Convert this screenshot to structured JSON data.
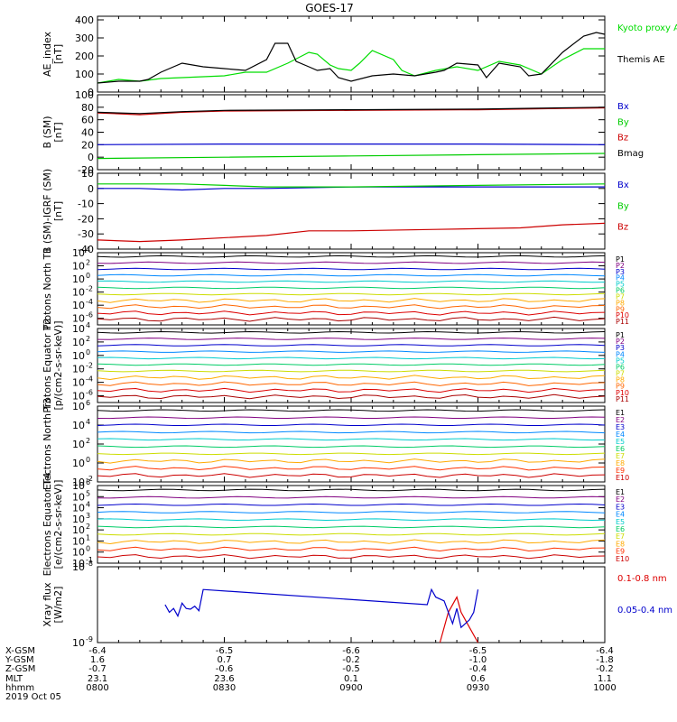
{
  "title": "GOES-17",
  "footer": {
    "row_labels": [
      "X-GSM",
      "Y-GSM",
      "Z-GSM",
      "MLT",
      "hhmm",
      "2019 Oct 05"
    ],
    "columns": [
      {
        "values": [
          "-6.4",
          "1.6",
          "-0.7",
          "23.1",
          "0800"
        ]
      },
      {
        "values": [
          "-6.5",
          "0.7",
          "-0.6",
          "23.6",
          "0830"
        ]
      },
      {
        "values": [
          "-6.6",
          "-0.2",
          "-0.5",
          "0.1",
          "0900"
        ]
      },
      {
        "values": [
          "-6.5",
          "-1.0",
          "-0.4",
          "0.6",
          "0930"
        ]
      },
      {
        "values": [
          "-6.4",
          "-1.8",
          "-0.2",
          "1.1",
          "1000"
        ]
      }
    ]
  },
  "chart_data": [
    {
      "type": "line",
      "ylabel": "AE_index [nT]",
      "ylim": [
        0,
        420
      ],
      "yticks": [
        "0",
        "100",
        "200",
        "300",
        "400"
      ],
      "xlim": [
        0,
        120
      ],
      "series": [
        {
          "name": "Kyoto proxy AE",
          "color": "#00dd00",
          "x": [
            0,
            5,
            10,
            15,
            20,
            25,
            30,
            35,
            40,
            45,
            50,
            52,
            55,
            57,
            60,
            62,
            65,
            70,
            72,
            75,
            80,
            85,
            90,
            95,
            100,
            105,
            110,
            115,
            120
          ],
          "y": [
            50,
            70,
            60,
            75,
            80,
            85,
            90,
            110,
            110,
            160,
            220,
            210,
            150,
            130,
            120,
            160,
            230,
            180,
            120,
            90,
            120,
            140,
            120,
            170,
            150,
            100,
            180,
            240,
            240
          ]
        },
        {
          "name": "Themis AE",
          "color": "#000000",
          "x": [
            0,
            5,
            10,
            12,
            15,
            20,
            25,
            30,
            35,
            40,
            42,
            45,
            47,
            50,
            52,
            55,
            57,
            60,
            65,
            70,
            75,
            80,
            82,
            85,
            90,
            92,
            95,
            100,
            102,
            105,
            110,
            115,
            118,
            120
          ],
          "y": [
            50,
            60,
            60,
            70,
            110,
            160,
            140,
            130,
            120,
            180,
            270,
            270,
            170,
            140,
            120,
            130,
            80,
            60,
            90,
            100,
            90,
            110,
            120,
            160,
            150,
            80,
            160,
            140,
            90,
            100,
            220,
            310,
            330,
            320
          ]
        }
      ]
    },
    {
      "type": "line",
      "ylabel": "B (SM) [nT]",
      "ylim": [
        -20,
        100
      ],
      "yticks": [
        "-20",
        "0",
        "20",
        "40",
        "60",
        "80",
        "100"
      ],
      "xlim": [
        0,
        120
      ],
      "series": [
        {
          "name": "Bx",
          "color": "#0000cc",
          "x": [
            0,
            30,
            60,
            90,
            120
          ],
          "y": [
            20,
            21,
            21,
            21,
            20
          ]
        },
        {
          "name": "By",
          "color": "#00cc00",
          "x": [
            0,
            30,
            60,
            90,
            120
          ],
          "y": [
            -2,
            0,
            2,
            4,
            6
          ]
        },
        {
          "name": "Bz",
          "color": "#cc0000",
          "x": [
            0,
            10,
            20,
            30,
            60,
            90,
            110,
            120
          ],
          "y": [
            71,
            68,
            72,
            74,
            75,
            76,
            78,
            79
          ]
        },
        {
          "name": "Bmag",
          "color": "#000000",
          "x": [
            0,
            10,
            20,
            30,
            60,
            90,
            110,
            120
          ],
          "y": [
            72,
            70,
            73,
            75,
            76,
            77,
            79,
            80
          ]
        }
      ]
    },
    {
      "type": "line",
      "ylabel": "B (SM)-IGRF (SM) [nT]",
      "ylim": [
        -40,
        10
      ],
      "yticks": [
        "-40",
        "-30",
        "-20",
        "-10",
        "0",
        "10"
      ],
      "xlim": [
        0,
        120
      ],
      "series": [
        {
          "name": "Bx",
          "color": "#0000cc",
          "x": [
            0,
            10,
            20,
            30,
            40,
            60,
            90,
            120
          ],
          "y": [
            0,
            0,
            -1,
            0,
            0,
            1,
            1,
            1
          ]
        },
        {
          "name": "By",
          "color": "#00cc00",
          "x": [
            0,
            10,
            20,
            30,
            40,
            60,
            90,
            120
          ],
          "y": [
            3,
            3,
            3,
            2,
            1,
            1,
            2,
            3
          ]
        },
        {
          "name": "Bz",
          "color": "#cc0000",
          "x": [
            0,
            10,
            20,
            40,
            50,
            60,
            80,
            100,
            110,
            120
          ],
          "y": [
            -34,
            -35,
            -34,
            -31,
            -28,
            -28,
            -27,
            -26,
            -24,
            -23
          ]
        }
      ]
    },
    {
      "type": "line",
      "yscale": "log",
      "ylabel": "Protons North T1",
      "ylim": [
        -7,
        4
      ],
      "yticks": [
        [
          4,
          "10^4"
        ],
        [
          2,
          "10^2"
        ],
        [
          0,
          "10^0"
        ],
        [
          -2,
          "10^-2"
        ],
        [
          -4,
          "10^-4"
        ],
        [
          -6,
          "10^-6"
        ]
      ],
      "legend": [
        "P1",
        "P2",
        "P3",
        "P4",
        "P5",
        "P6",
        "P7",
        "P8",
        "P9",
        "P10",
        "P11"
      ],
      "legend_colors": [
        "#000000",
        "#800080",
        "#0000cc",
        "#0088ff",
        "#00cccc",
        "#00cc66",
        "#ccdd00",
        "#ffaa00",
        "#ff6600",
        "#dd0000",
        "#aa0000"
      ]
    },
    {
      "type": "line",
      "yscale": "log",
      "ylabel": "Protons Equator T2 [p/(cm2-s-sr-keV)]",
      "ylim": [
        -7,
        4
      ],
      "yticks": [
        [
          4,
          "10^4"
        ],
        [
          2,
          "10^2"
        ],
        [
          0,
          "10^0"
        ],
        [
          -2,
          "10^-2"
        ],
        [
          -4,
          "10^-4"
        ],
        [
          -6,
          "10^-6"
        ]
      ],
      "legend": [
        "P1",
        "P2",
        "P3",
        "P4",
        "P5",
        "P6",
        "P7",
        "P8",
        "P9",
        "P10",
        "P11"
      ],
      "legend_colors": [
        "#000000",
        "#800080",
        "#0000cc",
        "#0088ff",
        "#00cccc",
        "#00cc66",
        "#ccdd00",
        "#ffaa00",
        "#ff6600",
        "#dd0000",
        "#aa0000"
      ]
    },
    {
      "type": "line",
      "yscale": "log",
      "ylabel": "Electrons North T3",
      "ylim": [
        -2,
        6
      ],
      "yticks": [
        [
          6,
          "10^6"
        ],
        [
          4,
          "10^4"
        ],
        [
          2,
          "10^2"
        ],
        [
          0,
          "10^0"
        ],
        [
          -2,
          "10^-2"
        ]
      ],
      "legend": [
        "E1",
        "E2",
        "E3",
        "E4",
        "E5",
        "E6",
        "E7",
        "E8",
        "E9",
        "E10"
      ],
      "legend_colors": [
        "#000000",
        "#800080",
        "#0000cc",
        "#0088ff",
        "#00cccc",
        "#00cc66",
        "#ccdd00",
        "#ffaa00",
        "#ff3300",
        "#cc0000"
      ]
    },
    {
      "type": "line",
      "yscale": "log",
      "ylabel": "Electrons Equator T4 [e/(cm2-s-sr-keV)]",
      "ylim": [
        -1,
        6
      ],
      "yticks": [
        [
          6,
          "10^6"
        ],
        [
          5,
          "10^5"
        ],
        [
          4,
          "10^4"
        ],
        [
          3,
          "10^3"
        ],
        [
          2,
          "10^2"
        ],
        [
          1,
          "10^1"
        ],
        [
          0,
          "10^0"
        ],
        [
          -1,
          "10^-1"
        ]
      ],
      "legend": [
        "E1",
        "E2",
        "E3",
        "E4",
        "E5",
        "E6",
        "E7",
        "E8",
        "E9",
        "E10"
      ],
      "legend_colors": [
        "#000000",
        "#800080",
        "#0000cc",
        "#0088ff",
        "#00cccc",
        "#00cc66",
        "#ccdd00",
        "#ffaa00",
        "#ff3300",
        "#cc0000"
      ]
    },
    {
      "type": "line",
      "yscale": "log",
      "ylabel": "Xray flux [W/m2]",
      "ylim": [
        -9,
        -8
      ],
      "yticks": [
        [
          -8,
          "10^-8"
        ],
        [
          -9,
          "10^-9"
        ]
      ],
      "xlim": [
        0,
        120
      ],
      "series": [
        {
          "name": "0.1-0.8 nm",
          "color": "#dd0000",
          "x": [
            81,
            83,
            85,
            86,
            88,
            90
          ],
          "y": [
            -9.0,
            -8.6,
            -8.4,
            -8.6,
            -8.8,
            -9.0
          ]
        },
        {
          "name": "0.05-0.4 nm",
          "color": "#0000cc",
          "x": [
            16,
            17,
            18,
            19,
            20,
            21,
            22,
            23,
            24,
            25,
            78,
            79,
            80,
            82,
            83,
            84,
            85,
            86,
            88,
            89,
            90
          ],
          "y": [
            -8.5,
            -8.6,
            -8.55,
            -8.65,
            -8.48,
            -8.55,
            -8.56,
            -8.52,
            -8.58,
            -8.3,
            -8.5,
            -8.3,
            -8.4,
            -8.45,
            -8.6,
            -8.75,
            -8.55,
            -8.8,
            -8.7,
            -8.6,
            -8.3
          ]
        }
      ]
    }
  ]
}
